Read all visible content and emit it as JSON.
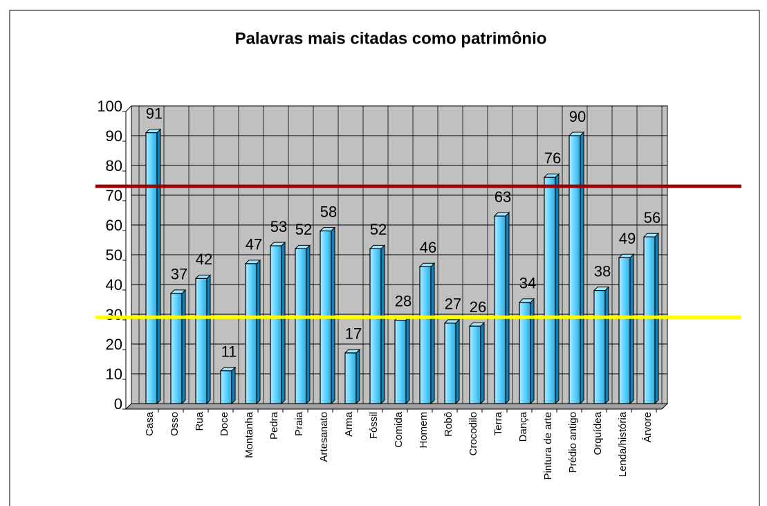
{
  "chart_data": {
    "type": "bar",
    "title": "Palavras mais citadas como patrimônio",
    "categories": [
      "Casa",
      "Osso",
      "Rua",
      "Doce",
      "Montanha",
      "Pedra",
      "Praia",
      "Artesanato",
      "Arma",
      "Fóssil",
      "Comida",
      "Homem",
      "Robô",
      "Crocodilo",
      "Terra",
      "Dança",
      "Pintura de arte",
      "Prédio antigo",
      "Orquídea",
      "Lenda/história",
      "Árvore"
    ],
    "values": [
      91,
      37,
      42,
      11,
      47,
      53,
      52,
      58,
      17,
      52,
      28,
      46,
      27,
      26,
      63,
      34,
      76,
      90,
      38,
      49,
      56
    ],
    "color": "#33ccff",
    "ylim": [
      0,
      100
    ],
    "yticks": [
      0,
      10,
      20,
      30,
      40,
      50,
      60,
      70,
      80,
      90,
      100
    ],
    "grid": true,
    "reference_lines": [
      {
        "value": 73,
        "color": "#a00000"
      },
      {
        "value": 29,
        "color": "#ffff00"
      }
    ]
  }
}
